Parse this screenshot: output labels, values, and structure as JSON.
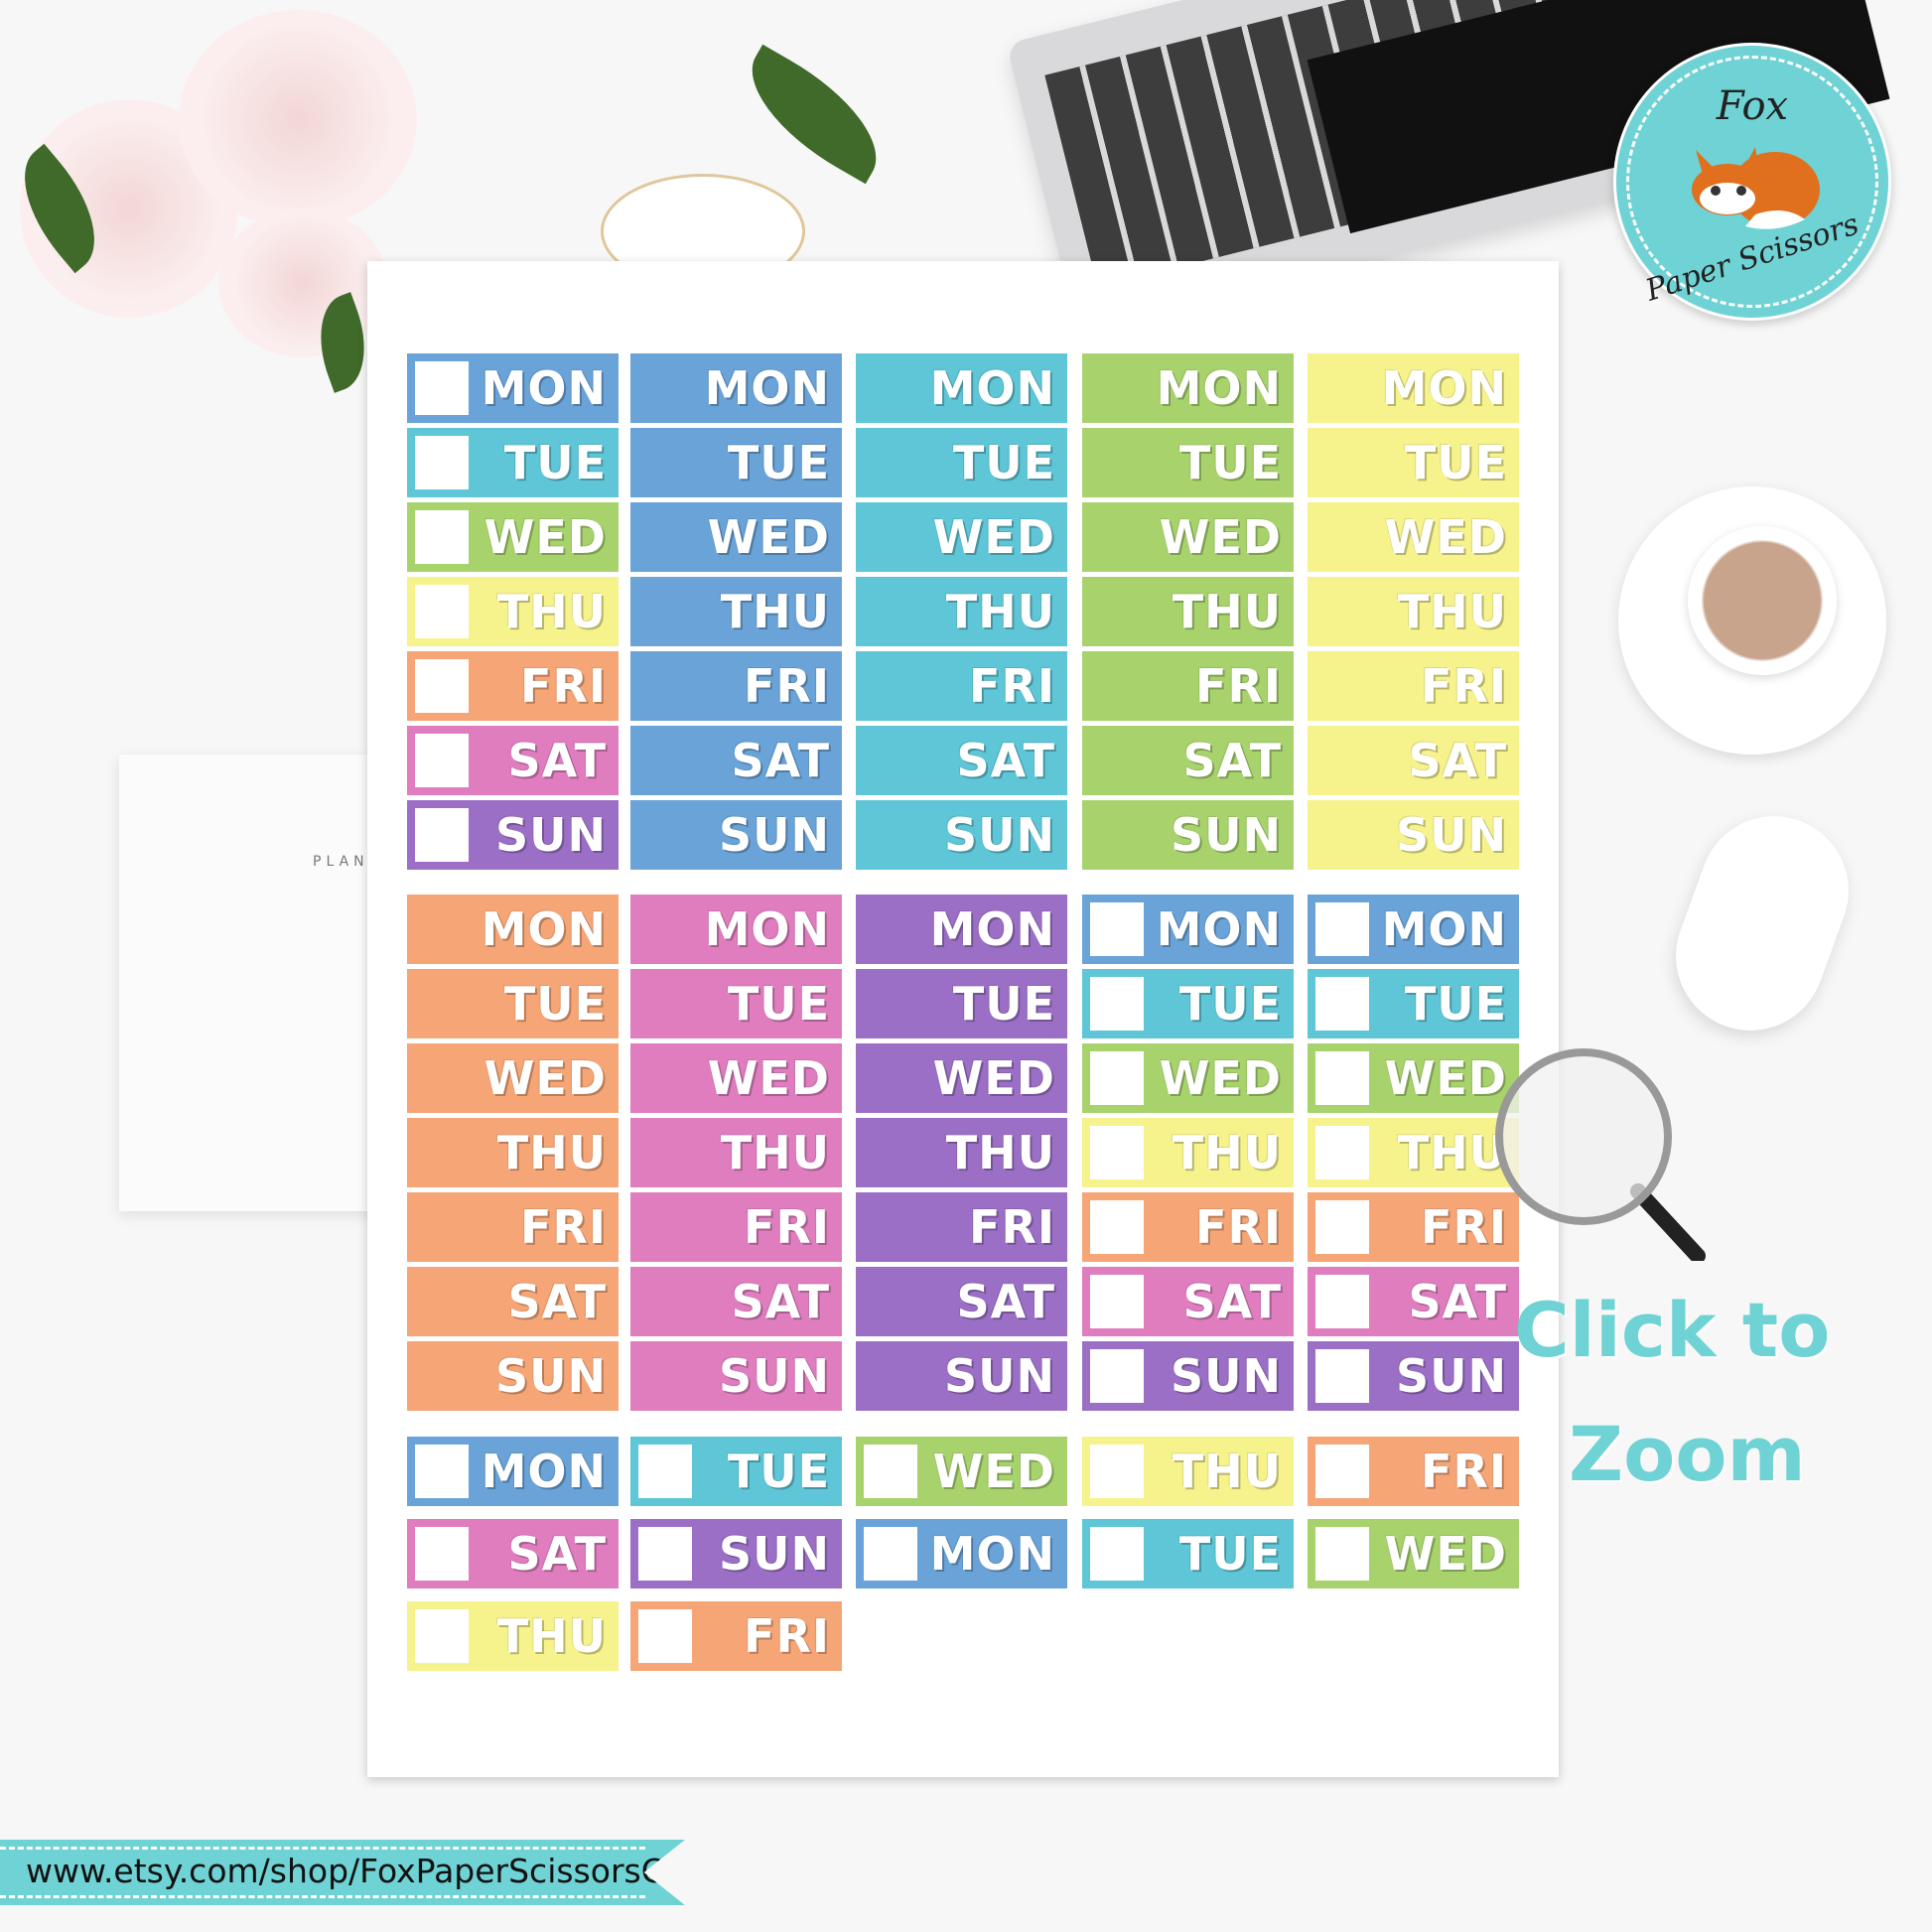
{
  "colors": {
    "blue": "#6aa3d8",
    "teal": "#5ec6d6",
    "green": "#a8d36c",
    "yellow": "#f6f28c",
    "orange": "#f6a676",
    "pink": "#df7dbf",
    "purple": "#9b6fc6",
    "brand": "#6fd2d4"
  },
  "logo": {
    "line1": "Fox",
    "line2": "Paper Scissors"
  },
  "sheet": {
    "block1": [
      [
        {
          "d": "MON",
          "c": "blue",
          "cb": true
        },
        {
          "d": "TUE",
          "c": "teal",
          "cb": true
        },
        {
          "d": "WED",
          "c": "green",
          "cb": true
        },
        {
          "d": "THU",
          "c": "yellow",
          "cb": true
        },
        {
          "d": "FRI",
          "c": "orange",
          "cb": true
        },
        {
          "d": "SAT",
          "c": "pink",
          "cb": true
        },
        {
          "d": "SUN",
          "c": "purple",
          "cb": true
        }
      ],
      [
        {
          "d": "MON",
          "c": "blue"
        },
        {
          "d": "TUE",
          "c": "blue"
        },
        {
          "d": "WED",
          "c": "blue"
        },
        {
          "d": "THU",
          "c": "blue"
        },
        {
          "d": "FRI",
          "c": "blue"
        },
        {
          "d": "SAT",
          "c": "blue"
        },
        {
          "d": "SUN",
          "c": "blue"
        }
      ],
      [
        {
          "d": "MON",
          "c": "teal"
        },
        {
          "d": "TUE",
          "c": "teal"
        },
        {
          "d": "WED",
          "c": "teal"
        },
        {
          "d": "THU",
          "c": "teal"
        },
        {
          "d": "FRI",
          "c": "teal"
        },
        {
          "d": "SAT",
          "c": "teal"
        },
        {
          "d": "SUN",
          "c": "teal"
        }
      ],
      [
        {
          "d": "MON",
          "c": "green"
        },
        {
          "d": "TUE",
          "c": "green"
        },
        {
          "d": "WED",
          "c": "green"
        },
        {
          "d": "THU",
          "c": "green"
        },
        {
          "d": "FRI",
          "c": "green"
        },
        {
          "d": "SAT",
          "c": "green"
        },
        {
          "d": "SUN",
          "c": "green"
        }
      ],
      [
        {
          "d": "MON",
          "c": "yellow"
        },
        {
          "d": "TUE",
          "c": "yellow"
        },
        {
          "d": "WED",
          "c": "yellow"
        },
        {
          "d": "THU",
          "c": "yellow"
        },
        {
          "d": "FRI",
          "c": "yellow"
        },
        {
          "d": "SAT",
          "c": "yellow"
        },
        {
          "d": "SUN",
          "c": "yellow"
        }
      ]
    ],
    "block2": [
      [
        {
          "d": "MON",
          "c": "orange"
        },
        {
          "d": "TUE",
          "c": "orange"
        },
        {
          "d": "WED",
          "c": "orange"
        },
        {
          "d": "THU",
          "c": "orange"
        },
        {
          "d": "FRI",
          "c": "orange"
        },
        {
          "d": "SAT",
          "c": "orange"
        },
        {
          "d": "SUN",
          "c": "orange"
        }
      ],
      [
        {
          "d": "MON",
          "c": "pink"
        },
        {
          "d": "TUE",
          "c": "pink"
        },
        {
          "d": "WED",
          "c": "pink"
        },
        {
          "d": "THU",
          "c": "pink"
        },
        {
          "d": "FRI",
          "c": "pink"
        },
        {
          "d": "SAT",
          "c": "pink"
        },
        {
          "d": "SUN",
          "c": "pink"
        }
      ],
      [
        {
          "d": "MON",
          "c": "purple"
        },
        {
          "d": "TUE",
          "c": "purple"
        },
        {
          "d": "WED",
          "c": "purple"
        },
        {
          "d": "THU",
          "c": "purple"
        },
        {
          "d": "FRI",
          "c": "purple"
        },
        {
          "d": "SAT",
          "c": "purple"
        },
        {
          "d": "SUN",
          "c": "purple"
        }
      ],
      [
        {
          "d": "MON",
          "c": "blue",
          "cb": true
        },
        {
          "d": "TUE",
          "c": "teal",
          "cb": true
        },
        {
          "d": "WED",
          "c": "green",
          "cb": true
        },
        {
          "d": "THU",
          "c": "yellow",
          "cb": true
        },
        {
          "d": "FRI",
          "c": "orange",
          "cb": true
        },
        {
          "d": "SAT",
          "c": "pink",
          "cb": true
        },
        {
          "d": "SUN",
          "c": "purple",
          "cb": true
        }
      ],
      [
        {
          "d": "MON",
          "c": "blue",
          "cb": true
        },
        {
          "d": "TUE",
          "c": "teal",
          "cb": true
        },
        {
          "d": "WED",
          "c": "green",
          "cb": true
        },
        {
          "d": "THU",
          "c": "yellow",
          "cb": true
        },
        {
          "d": "FRI",
          "c": "orange",
          "cb": true
        },
        {
          "d": "SAT",
          "c": "pink",
          "cb": true
        },
        {
          "d": "SUN",
          "c": "purple",
          "cb": true
        }
      ]
    ],
    "block3": [
      [
        {
          "d": "MON",
          "c": "blue",
          "cb": true
        },
        {
          "d": "TUE",
          "c": "teal",
          "cb": true
        },
        {
          "d": "WED",
          "c": "green",
          "cb": true
        },
        {
          "d": "THU",
          "c": "yellow",
          "cb": true
        },
        {
          "d": "FRI",
          "c": "orange",
          "cb": true
        }
      ],
      [
        {
          "d": "SAT",
          "c": "pink",
          "cb": true
        },
        {
          "d": "SUN",
          "c": "purple",
          "cb": true
        },
        {
          "d": "MON",
          "c": "blue",
          "cb": true
        },
        {
          "d": "TUE",
          "c": "teal",
          "cb": true
        },
        {
          "d": "WED",
          "c": "green",
          "cb": true
        }
      ],
      [
        {
          "d": "THU",
          "c": "yellow",
          "cb": true
        },
        {
          "d": "FRI",
          "c": "orange",
          "cb": true
        }
      ]
    ]
  },
  "zoom_hint": {
    "line1": "Click to",
    "line2": "Zoom"
  },
  "banner": {
    "url": "www.etsy.com/shop/FoxPaperScissorsCo"
  },
  "planner": {
    "label": "PLAN"
  }
}
